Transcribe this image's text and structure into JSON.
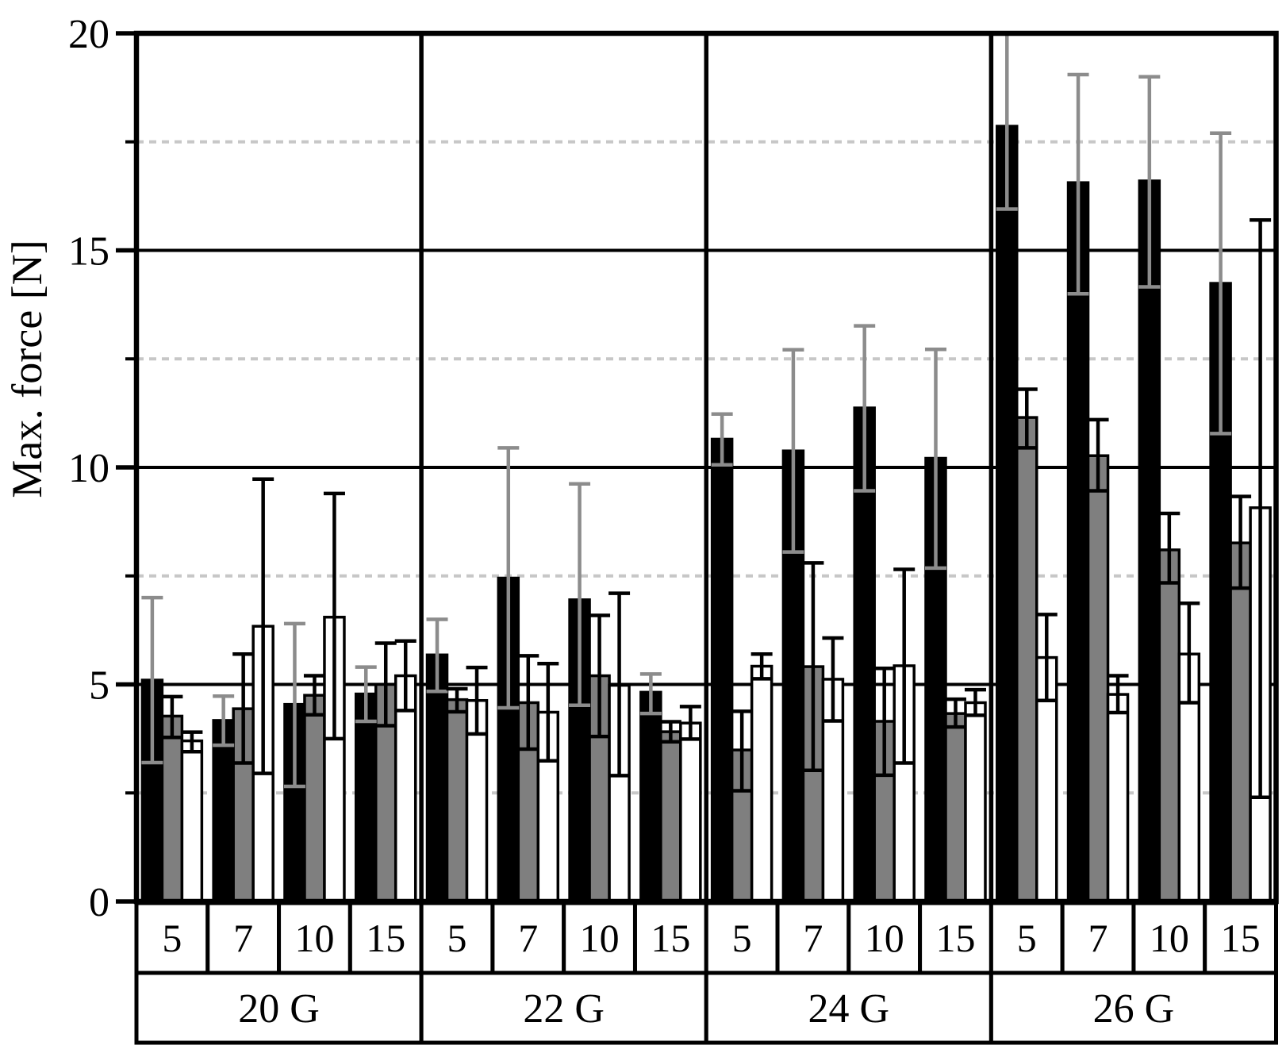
{
  "chart_data": {
    "type": "bar",
    "title": "",
    "ylabel": "Max. force [N]",
    "ylim": [
      0,
      20
    ],
    "y_major_ticks": [
      0,
      5,
      10,
      15,
      20
    ],
    "y_major_gridlines": [
      5,
      10,
      15
    ],
    "y_minor_dashed_gridlines": [
      2.5,
      7.5,
      12.5,
      17.5
    ],
    "legend_position": "none",
    "x_axis": {
      "group_labels": [
        "20 G",
        "22 G",
        "24 G",
        "26 G"
      ],
      "subgroup_labels": [
        "5",
        "7",
        "10",
        "15"
      ]
    },
    "categories": [
      "20G-5",
      "20G-7",
      "20G-10",
      "20G-15",
      "22G-5",
      "22G-7",
      "22G-10",
      "22G-15",
      "24G-5",
      "24G-7",
      "24G-10",
      "24G-15",
      "26G-5",
      "26G-7",
      "26G-10",
      "26G-15"
    ],
    "series": [
      {
        "name": "black",
        "fill": "#000000",
        "error_color": "#8c8c8c",
        "values": [
          5.1,
          4.17,
          4.54,
          4.78,
          5.68,
          7.45,
          6.95,
          4.82,
          10.65,
          10.38,
          11.37,
          10.21,
          17.86,
          16.56,
          16.6,
          14.24
        ],
        "err_low": [
          3.2,
          3.6,
          2.65,
          4.15,
          4.84,
          4.46,
          4.52,
          4.33,
          10.06,
          8.05,
          9.46,
          7.68,
          15.95,
          14.0,
          14.16,
          10.78
        ],
        "err_high": [
          7.0,
          4.73,
          6.4,
          5.4,
          6.5,
          10.45,
          9.62,
          5.24,
          11.23,
          12.71,
          13.26,
          12.72,
          20.0,
          19.05,
          19.0,
          17.7
        ]
      },
      {
        "name": "gray",
        "fill": "#7f7f7f",
        "error_color": "#000000",
        "values": [
          4.27,
          4.44,
          4.75,
          5.0,
          4.65,
          4.58,
          5.2,
          3.91,
          3.49,
          5.41,
          4.15,
          4.33,
          11.15,
          10.27,
          8.1,
          8.26
        ],
        "err_low": [
          3.78,
          3.19,
          4.3,
          4.05,
          4.37,
          3.51,
          3.8,
          3.68,
          2.55,
          3.02,
          2.91,
          4.02,
          10.45,
          9.46,
          7.34,
          7.22
        ],
        "err_high": [
          4.72,
          5.7,
          5.2,
          5.95,
          4.9,
          5.66,
          6.59,
          4.14,
          4.38,
          7.8,
          5.37,
          4.66,
          11.8,
          11.1,
          8.94,
          9.33
        ]
      },
      {
        "name": "white",
        "fill": "#ffffff",
        "error_color": "#000000",
        "values": [
          3.7,
          6.34,
          6.55,
          5.2,
          4.63,
          4.36,
          4.98,
          4.11,
          5.42,
          5.12,
          5.43,
          4.58,
          5.62,
          4.77,
          5.7,
          9.07
        ],
        "err_low": [
          3.45,
          2.95,
          3.75,
          4.4,
          3.86,
          3.24,
          2.9,
          3.74,
          5.13,
          4.16,
          3.19,
          4.29,
          4.63,
          4.35,
          4.58,
          2.4
        ],
        "err_high": [
          3.9,
          9.73,
          9.4,
          6.0,
          5.39,
          5.48,
          7.1,
          4.49,
          5.7,
          6.07,
          7.65,
          4.88,
          6.61,
          5.2,
          6.87,
          15.7
        ]
      }
    ],
    "colors": {
      "frame": "#000000",
      "major_gridline": "#000000",
      "minor_gridline": "#c7c7c7",
      "bar_outline": "#000000",
      "background": "#ffffff"
    }
  }
}
